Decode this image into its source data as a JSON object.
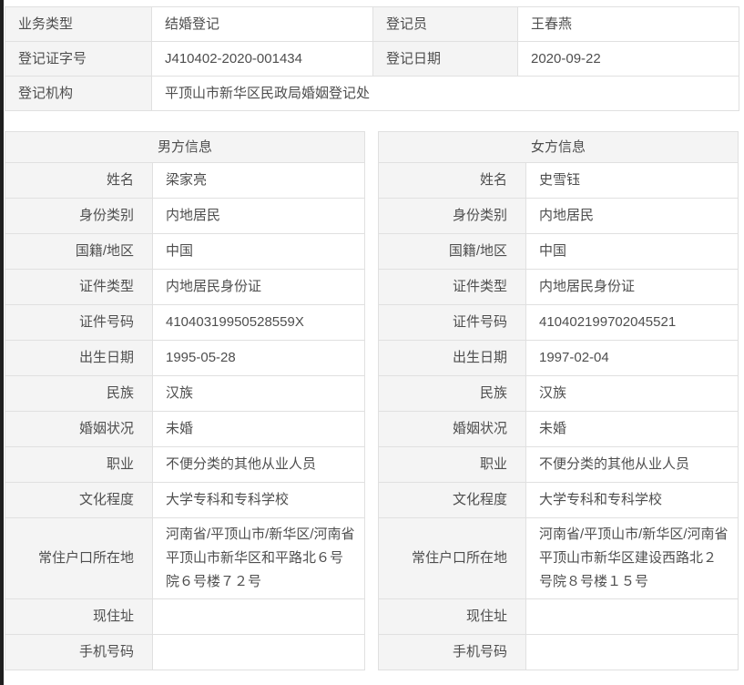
{
  "page": {
    "background_color": "#ffffff",
    "edge_strip_color": "#1f1f1f",
    "label_cell_color": "#f4f4f4",
    "border_color": "#e0e0e0",
    "text_color": "#4e4e4e"
  },
  "summary_table": {
    "rows": [
      {
        "label1": "业务类型",
        "value1": "结婚登记",
        "label2": "登记员",
        "value2": "王春燕"
      },
      {
        "label1": "登记证字号",
        "value1": "J410402-2020-001434",
        "label2": "登记日期",
        "value2": "2020-09-22"
      },
      {
        "label1": "登记机构",
        "value1": "平顶山市新华区民政局婚姻登记处"
      }
    ]
  },
  "male_table": {
    "title": "男方信息",
    "rows": [
      {
        "label": "姓名",
        "value": "梁家亮"
      },
      {
        "label": "身份类别",
        "value": "内地居民"
      },
      {
        "label": "国籍/地区",
        "value": "中国"
      },
      {
        "label": "证件类型",
        "value": "内地居民身份证"
      },
      {
        "label": "证件号码",
        "value": "41040319950528559X"
      },
      {
        "label": "出生日期",
        "value": "1995-05-28"
      },
      {
        "label": "民族",
        "value": "汉族"
      },
      {
        "label": "婚姻状况",
        "value": "未婚"
      },
      {
        "label": "职业",
        "value": "不便分类的其他从业人员"
      },
      {
        "label": "文化程度",
        "value": "大学专科和专科学校"
      },
      {
        "label": "常住户口所在地",
        "value": "河南省/平顶山市/新华区/河南省平顶山市新华区和平路北６号院６号楼７２号"
      },
      {
        "label": "现住址",
        "value": ""
      },
      {
        "label": "手机号码",
        "value": ""
      }
    ]
  },
  "female_table": {
    "title": "女方信息",
    "rows": [
      {
        "label": "姓名",
        "value": "史雪钰"
      },
      {
        "label": "身份类别",
        "value": "内地居民"
      },
      {
        "label": "国籍/地区",
        "value": "中国"
      },
      {
        "label": "证件类型",
        "value": "内地居民身份证"
      },
      {
        "label": "证件号码",
        "value": "410402199702045521"
      },
      {
        "label": "出生日期",
        "value": "1997-02-04"
      },
      {
        "label": "民族",
        "value": "汉族"
      },
      {
        "label": "婚姻状况",
        "value": "未婚"
      },
      {
        "label": "职业",
        "value": "不便分类的其他从业人员"
      },
      {
        "label": "文化程度",
        "value": "大学专科和专科学校"
      },
      {
        "label": "常住户口所在地",
        "value": "河南省/平顶山市/新华区/河南省平顶山市新华区建设西路北２号院８号楼１５号"
      },
      {
        "label": "现住址",
        "value": ""
      },
      {
        "label": "手机号码",
        "value": ""
      }
    ]
  }
}
